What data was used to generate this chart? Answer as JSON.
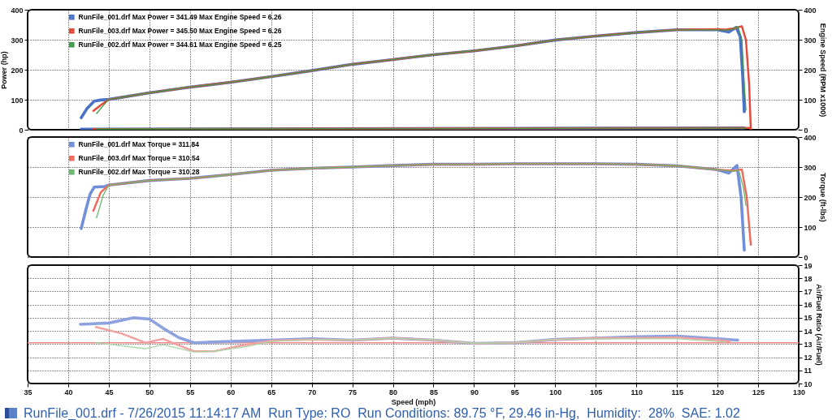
{
  "chart_data": [
    {
      "type": "line",
      "ylabel": "Power (hp)",
      "y2label": "Engine Speed (RPM x1000)",
      "xlim": [
        35,
        130
      ],
      "xticks": [
        35,
        40,
        45,
        50,
        55,
        60,
        65,
        70,
        75,
        80,
        85,
        90,
        95,
        100,
        105,
        110,
        115,
        120,
        125,
        130
      ],
      "ylim": [
        0,
        400
      ],
      "yticks": [
        0,
        100,
        200,
        300,
        400
      ],
      "y2lim": [
        0,
        400
      ],
      "y2ticks": [
        0,
        100,
        200,
        300,
        400
      ],
      "grid": true,
      "legend": "top left",
      "tick_labels": "y",
      "series": [
        {
          "name": "RunFile_001.drf Max Power = 341.49    Max Engine Speed = 6.26",
          "color": "#4a72c8",
          "x": [
            41.6,
            42.3,
            43.2,
            44,
            45,
            50,
            55,
            60,
            65,
            70,
            75,
            80,
            85,
            90,
            95,
            100,
            105,
            110,
            115,
            120,
            121.4,
            122.3,
            122.8,
            123.1,
            123.3
          ],
          "values": [
            40,
            70,
            95,
            99,
            101,
            123,
            142,
            158,
            177,
            197,
            218,
            234,
            250,
            263,
            279,
            299,
            312,
            324,
            333,
            333,
            326,
            341,
            310,
            180,
            60
          ]
        },
        {
          "name": "RunFile_003.drf Max Power = 345.50    Max Engine Speed = 6.26",
          "color": "#e4483a",
          "x": [
            43.1,
            44,
            45,
            50,
            55,
            60,
            65,
            70,
            75,
            80,
            85,
            90,
            95,
            100,
            105,
            110,
            115,
            120,
            121,
            122,
            123,
            123.5,
            123.9,
            124.1
          ],
          "values": [
            63,
            82,
            101,
            123,
            142,
            158,
            177,
            197,
            218,
            234,
            250,
            263,
            279,
            299,
            312,
            324,
            333,
            335,
            334,
            338,
            345,
            300,
            150,
            0
          ]
        },
        {
          "name": "RunFile_002.drf Max Power = 344.61    Max Engine Speed = 6.25",
          "color": "#3f9a4a",
          "x": [
            43.5,
            44.3,
            45,
            50,
            55,
            60,
            65,
            70,
            75,
            80,
            85,
            90,
            95,
            100,
            105,
            110,
            115,
            120,
            121.5,
            122.5,
            123,
            123.3,
            123.5
          ],
          "values": [
            54,
            80,
            101,
            123,
            142,
            158,
            177,
            197,
            218,
            234,
            250,
            263,
            279,
            299,
            312,
            324,
            333,
            333,
            332,
            344,
            300,
            150,
            65
          ]
        },
        {
          "color": "#4a72c8",
          "axis": "y2",
          "x": [
            41.6,
            123.3
          ],
          "values": [
            2,
            6
          ]
        },
        {
          "color": "#e4483a",
          "axis": "y2",
          "x": [
            43.1,
            124.1
          ],
          "values": [
            2,
            6
          ]
        },
        {
          "color": "#3f9a4a",
          "axis": "y2",
          "x": [
            43.5,
            123.5
          ],
          "values": [
            2,
            6
          ]
        }
      ]
    },
    {
      "type": "line",
      "y2label": "Torque (ft-lbs)",
      "xlim": [
        35,
        130
      ],
      "xticks": [
        35,
        40,
        45,
        50,
        55,
        60,
        65,
        70,
        75,
        80,
        85,
        90,
        95,
        100,
        105,
        110,
        115,
        120,
        125,
        130
      ],
      "y2lim": [
        0,
        400
      ],
      "y2ticks": [
        0,
        100,
        200,
        300,
        400
      ],
      "grid": true,
      "legend": "top left",
      "tick_labels": "y",
      "series": [
        {
          "name": "RunFile_001.drf Max Torque = 311.84",
          "color": "#6f8fd8",
          "axis": "y2",
          "x": [
            41.6,
            42.2,
            42.7,
            43.2,
            44.5,
            45,
            50,
            55,
            60,
            65,
            70,
            75,
            80,
            85,
            90,
            95,
            100,
            105,
            110,
            115,
            120,
            121.4,
            122.4,
            122.9,
            123.3
          ],
          "values": [
            95,
            160,
            210,
            233,
            235,
            240,
            255,
            262,
            275,
            289,
            296,
            300,
            305,
            309,
            309,
            311,
            311,
            311,
            309,
            304,
            291,
            280,
            305,
            200,
            23
          ]
        },
        {
          "name": "RunFile_003.drf Max Torque = 310.54",
          "color": "#ee6a5c",
          "axis": "y2",
          "x": [
            43.1,
            44,
            45,
            50,
            55,
            60,
            65,
            70,
            75,
            80,
            85,
            90,
            95,
            100,
            105,
            110,
            115,
            120,
            122,
            123,
            123.6,
            124.1
          ],
          "values": [
            154,
            215,
            240,
            255,
            262,
            275,
            289,
            296,
            300,
            305,
            309,
            309,
            311,
            311,
            311,
            309,
            304,
            291,
            288,
            292,
            200,
            41
          ]
        },
        {
          "name": "RunFile_002.drf Max Torque = 310.28",
          "color": "#6ab870",
          "axis": "y2",
          "x": [
            43.5,
            44.3,
            45,
            50,
            55,
            60,
            65,
            70,
            75,
            80,
            85,
            90,
            95,
            100,
            105,
            110,
            115,
            120,
            122,
            122.6,
            123.2,
            123.5
          ],
          "values": [
            131,
            205,
            240,
            255,
            262,
            275,
            289,
            296,
            300,
            305,
            309,
            309,
            311,
            311,
            311,
            309,
            304,
            291,
            286,
            290,
            230,
            172
          ]
        }
      ]
    },
    {
      "type": "line",
      "xlabel": "Speed (mph)",
      "y2label": "Air/Fuel Ratio (Air/Fuel)",
      "xlim": [
        35,
        130
      ],
      "xticks": [
        35,
        40,
        45,
        50,
        55,
        60,
        65,
        70,
        75,
        80,
        85,
        90,
        95,
        100,
        105,
        110,
        115,
        120,
        125,
        130
      ],
      "y2lim": [
        10,
        19
      ],
      "y2ticks": [
        10,
        11,
        12,
        13,
        14,
        15,
        16,
        17,
        18,
        19
      ],
      "grid": true,
      "ref_lines": [
        {
          "axis": "y2",
          "value": 13.1,
          "color": "#f08a8a"
        }
      ],
      "annotations": [
        "RunFile_001.drf - 7/26/2015 11:14:17 AM  Run Type: RO  Run Conditions: 89.75 °F, 29.46 in-Hg,  Humidity:  28%  SAE: 1.02"
      ],
      "series": [
        {
          "color": "#8ea2e0",
          "axis": "y2",
          "x": [
            41.5,
            45,
            48,
            50,
            51.7,
            53.6,
            55.5,
            60,
            65,
            70,
            75,
            80,
            85,
            90,
            95,
            100,
            105,
            110,
            115,
            120,
            122.5
          ],
          "values": [
            14.5,
            14.6,
            15,
            14.9,
            14.2,
            13.5,
            13.1,
            13.2,
            13.3,
            13.4,
            13.3,
            13.45,
            13.3,
            13.05,
            13.1,
            13.35,
            13.45,
            13.55,
            13.6,
            13.4,
            13.3
          ]
        },
        {
          "color": "#f2a0a0",
          "axis": "y2",
          "x": [
            43.4,
            46.6,
            49.5,
            51.7,
            53.6,
            55.5,
            58,
            60.6,
            65,
            70,
            75,
            80,
            85,
            90,
            95,
            100,
            105,
            110,
            115,
            120,
            121.5
          ],
          "values": [
            14.3,
            13.8,
            13.1,
            13.4,
            12.9,
            12.45,
            12.45,
            12.8,
            13.25,
            13.35,
            13.3,
            13.45,
            13.3,
            13.05,
            13.1,
            13.35,
            13.45,
            13.45,
            13.5,
            13.3,
            13.2
          ]
        },
        {
          "color": "#a8d8a8",
          "axis": "y2",
          "x": [
            43.4,
            49.5,
            51.7,
            55.5,
            58,
            61.9,
            65,
            70,
            75,
            80,
            85,
            90,
            95,
            100,
            105,
            110,
            115,
            120,
            121
          ],
          "values": [
            13.1,
            12.65,
            12.95,
            12.4,
            12.45,
            12.8,
            13.2,
            13.35,
            13.3,
            13.45,
            13.3,
            13.05,
            13.1,
            13.35,
            13.4,
            13.4,
            13.4,
            13.2,
            13.15
          ]
        }
      ]
    }
  ]
}
